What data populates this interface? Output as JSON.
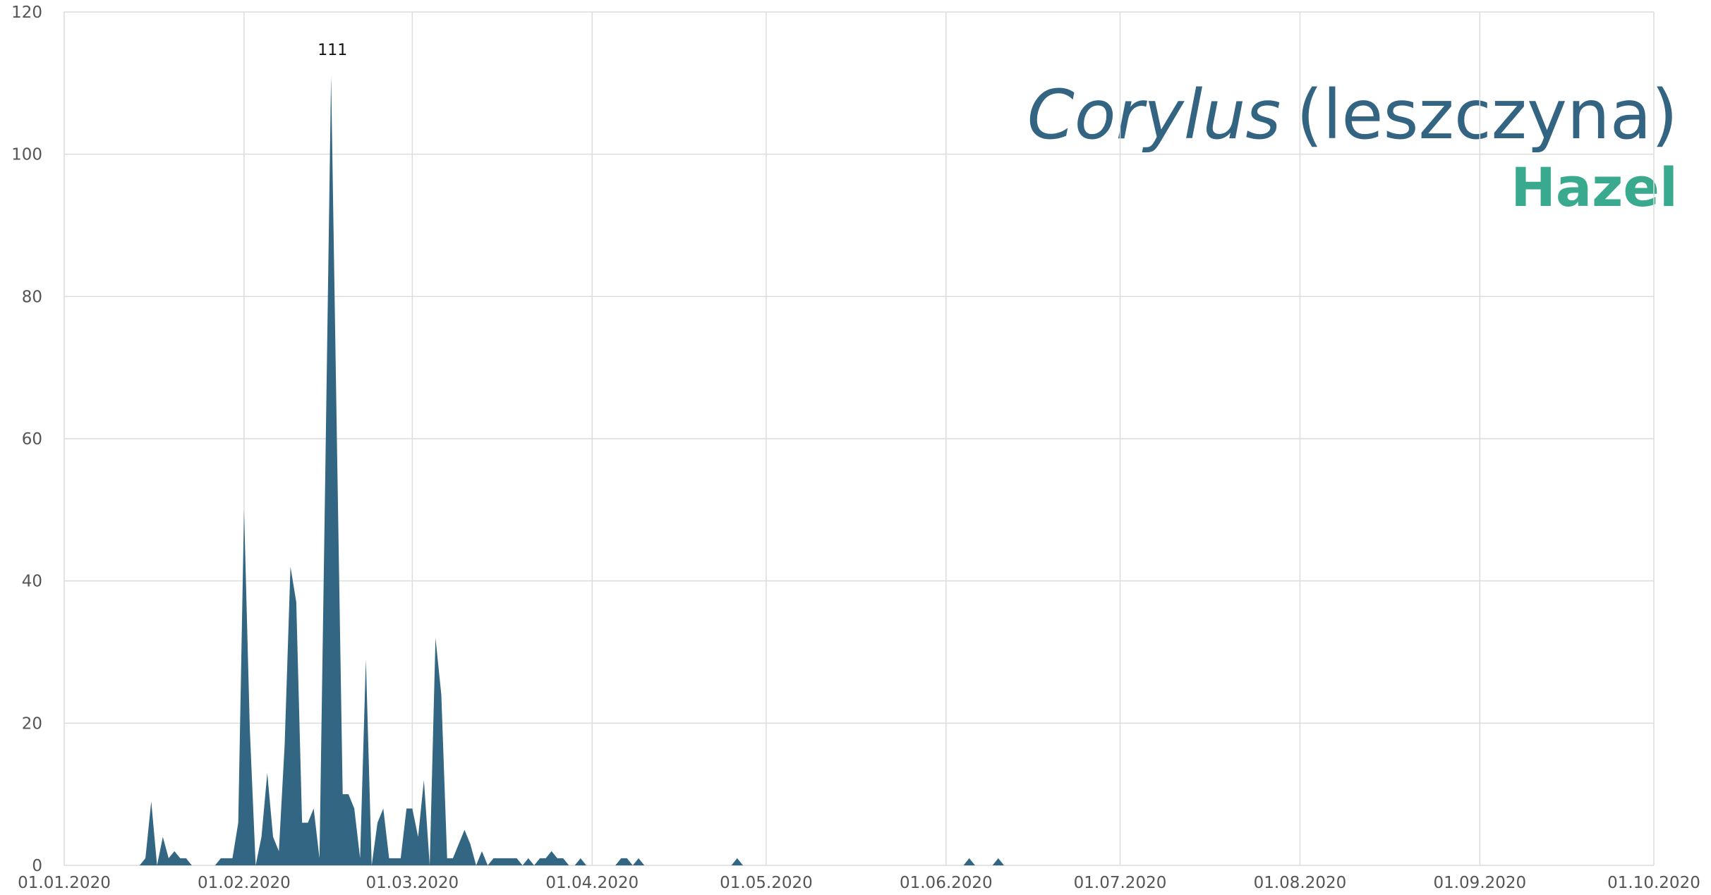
{
  "chart_data": {
    "type": "area",
    "title_italic": "Corylus",
    "title": "(leszczyna)",
    "subtitle": "Hazel",
    "x": [
      "14.01.2020",
      "15.01.2020",
      "16.01.2020",
      "17.01.2020",
      "18.01.2020",
      "19.01.2020",
      "20.01.2020",
      "21.01.2020",
      "22.01.2020",
      "23.01.2020",
      "24.01.2020",
      "25.01.2020",
      "26.01.2020",
      "27.01.2020",
      "28.01.2020",
      "29.01.2020",
      "30.01.2020",
      "31.01.2020",
      "01.02.2020",
      "02.02.2020",
      "03.02.2020",
      "04.02.2020",
      "05.02.2020",
      "06.02.2020",
      "07.02.2020",
      "08.02.2020",
      "09.02.2020",
      "10.02.2020",
      "11.02.2020",
      "12.02.2020",
      "13.02.2020",
      "14.02.2020",
      "15.02.2020",
      "16.02.2020",
      "17.02.2020",
      "18.02.2020",
      "19.02.2020",
      "20.02.2020",
      "21.02.2020",
      "22.02.2020",
      "23.02.2020",
      "24.02.2020",
      "25.02.2020",
      "26.02.2020",
      "27.02.2020",
      "28.02.2020",
      "29.02.2020",
      "01.03.2020",
      "02.03.2020",
      "03.03.2020",
      "04.03.2020",
      "05.03.2020",
      "06.03.2020",
      "07.03.2020",
      "08.03.2020",
      "09.03.2020",
      "10.03.2020",
      "11.03.2020",
      "12.03.2020",
      "13.03.2020",
      "14.03.2020",
      "15.03.2020",
      "16.03.2020",
      "17.03.2020",
      "18.03.2020",
      "19.03.2020",
      "20.03.2020",
      "21.03.2020",
      "22.03.2020",
      "23.03.2020",
      "24.03.2020",
      "25.03.2020",
      "26.03.2020",
      "27.03.2020",
      "28.03.2020",
      "29.03.2020",
      "30.03.2020",
      "31.03.2020",
      "05.04.2020",
      "06.04.2020",
      "07.04.2020",
      "08.04.2020",
      "09.04.2020",
      "10.04.2020",
      "25.04.2020",
      "26.04.2020",
      "27.04.2020",
      "04.06.2020",
      "05.06.2020",
      "06.06.2020",
      "09.06.2020",
      "10.06.2020",
      "11.06.2020"
    ],
    "series": [
      {
        "color": "#336683",
        "values": [
          0,
          1,
          9,
          0,
          4,
          1,
          2,
          1,
          1,
          0,
          0,
          0,
          0,
          0,
          1,
          1,
          1,
          6,
          50,
          19,
          0,
          4,
          13,
          4,
          2,
          17,
          42,
          37,
          6,
          6,
          8,
          1,
          55,
          111,
          60,
          10,
          10,
          8,
          1,
          29,
          0,
          6,
          8,
          1,
          1,
          1,
          8,
          8,
          4,
          12,
          0,
          32,
          24,
          1,
          1,
          3,
          5,
          3,
          0,
          2,
          0,
          1,
          1,
          1,
          1,
          1,
          0,
          1,
          0,
          1,
          1,
          2,
          1,
          1,
          0,
          0,
          1,
          0,
          0,
          1,
          1,
          0,
          1,
          0,
          0,
          1,
          0,
          0,
          1,
          0,
          0,
          1,
          0
        ]
      }
    ],
    "label_max": true,
    "xlim": [
      "01.01.2020",
      "01.10.2020"
    ],
    "xticks": [
      "01.01.2020",
      "01.02.2020",
      "01.03.2020",
      "01.04.2020",
      "01.05.2020",
      "01.06.2020",
      "01.07.2020",
      "01.08.2020",
      "01.09.2020",
      "01.10.2020"
    ],
    "ylim": [
      0,
      120
    ],
    "yticks": [
      0,
      20,
      40,
      60,
      80,
      100,
      120
    ],
    "grid": true
  }
}
